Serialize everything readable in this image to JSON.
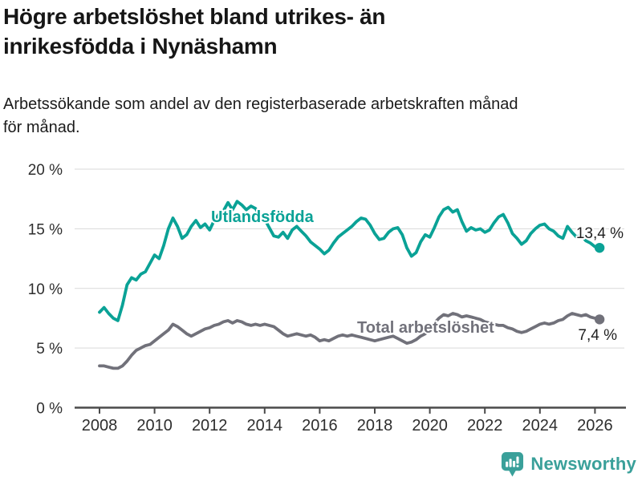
{
  "header": {
    "title_line1": "Högre arbetslöshet bland utrikes- än",
    "title_line2": "inrikesfödda i Nynäshamn",
    "subtitle_line1": "Arbetssökande som andel av den registerbaserade arbetskraften månad",
    "subtitle_line2": "för månad."
  },
  "chart_data": {
    "type": "line",
    "title": "Högre arbetslöshet bland utrikes- än inrikesfödda i Nynäshamn",
    "subtitle": "Arbetssökande som andel av den registerbaserade arbetskraften månad för månad.",
    "x_start": 2008,
    "x_step_years": 0.1666667,
    "x_tick_years": [
      2008,
      2010,
      2012,
      2014,
      2016,
      2018,
      2020,
      2022,
      2024,
      2026
    ],
    "y_ticks": [
      0,
      5,
      10,
      15,
      20
    ],
    "y_tick_suffix": " %",
    "ylim": [
      0,
      20
    ],
    "grid": true,
    "legend_position": "inline-labels",
    "series": [
      {
        "id": "utlandsfodda",
        "name": "Utlandsfödda",
        "color": "#0aa296",
        "end_label": "13,4 %",
        "end_value": 13.4,
        "values": [
          8.0,
          8.4,
          7.9,
          7.5,
          7.3,
          8.6,
          10.3,
          10.9,
          10.7,
          11.2,
          11.4,
          12.1,
          12.8,
          12.5,
          13.6,
          15.0,
          15.9,
          15.2,
          14.2,
          14.5,
          15.2,
          15.7,
          15.1,
          15.4,
          14.9,
          15.7,
          16.2,
          16.5,
          17.2,
          16.6,
          17.3,
          17.0,
          16.6,
          16.9,
          16.7,
          16.1,
          15.8,
          15.1,
          14.4,
          14.3,
          14.7,
          14.2,
          14.9,
          15.2,
          14.8,
          14.4,
          13.9,
          13.6,
          13.3,
          12.9,
          13.2,
          13.8,
          14.3,
          14.6,
          14.9,
          15.2,
          15.6,
          15.9,
          15.8,
          15.3,
          14.6,
          14.1,
          14.2,
          14.7,
          15.0,
          15.1,
          14.5,
          13.4,
          12.7,
          13.0,
          13.9,
          14.5,
          14.3,
          15.1,
          16.0,
          16.6,
          16.8,
          16.4,
          16.6,
          15.6,
          14.8,
          15.1,
          14.9,
          15.0,
          14.7,
          14.9,
          15.5,
          16.0,
          16.2,
          15.5,
          14.6,
          14.2,
          13.7,
          14.0,
          14.6,
          15.0,
          15.3,
          15.4,
          15.0,
          14.8,
          14.4,
          14.2,
          15.2,
          14.7,
          14.3,
          14.5,
          14.0,
          13.8,
          13.5,
          13.4
        ]
      },
      {
        "id": "total-arbetsloshet",
        "name": "Total arbetslöshet",
        "color": "#71717a",
        "end_label": "7,4 %",
        "end_value": 7.4,
        "values": [
          3.5,
          3.5,
          3.4,
          3.3,
          3.3,
          3.5,
          3.9,
          4.4,
          4.8,
          5.0,
          5.2,
          5.3,
          5.6,
          5.9,
          6.2,
          6.5,
          7.0,
          6.8,
          6.5,
          6.2,
          6.0,
          6.2,
          6.4,
          6.6,
          6.7,
          6.9,
          7.0,
          7.2,
          7.3,
          7.1,
          7.3,
          7.2,
          7.0,
          6.9,
          7.0,
          6.9,
          7.0,
          6.9,
          6.8,
          6.5,
          6.2,
          6.0,
          6.1,
          6.2,
          6.1,
          6.0,
          6.1,
          5.9,
          5.6,
          5.7,
          5.6,
          5.8,
          6.0,
          6.1,
          6.0,
          6.1,
          6.0,
          5.9,
          5.8,
          5.7,
          5.6,
          5.7,
          5.8,
          5.9,
          6.0,
          5.8,
          5.6,
          5.4,
          5.5,
          5.7,
          6.0,
          6.2,
          6.6,
          7.1,
          7.5,
          7.8,
          7.7,
          7.9,
          7.8,
          7.6,
          7.7,
          7.6,
          7.5,
          7.4,
          7.2,
          7.1,
          7.0,
          6.9,
          6.9,
          6.7,
          6.6,
          6.4,
          6.3,
          6.4,
          6.6,
          6.8,
          7.0,
          7.1,
          7.0,
          7.1,
          7.3,
          7.4,
          7.7,
          7.9,
          7.8,
          7.7,
          7.8,
          7.6,
          7.5,
          7.4
        ]
      }
    ]
  },
  "footer": {
    "brand": "Newsworthy",
    "logo_icon": "newsworthy-speech-bubble-chart-icon",
    "brand_color": "#3aa09a"
  },
  "colors": {
    "accent_teal": "#0aa296",
    "series_gray": "#71717a",
    "gridline": "#d9d9d9",
    "axis": "#4a4a4a",
    "tick_text": "#2e2e2e",
    "text_dark": "#161616",
    "background": "#ffffff"
  }
}
